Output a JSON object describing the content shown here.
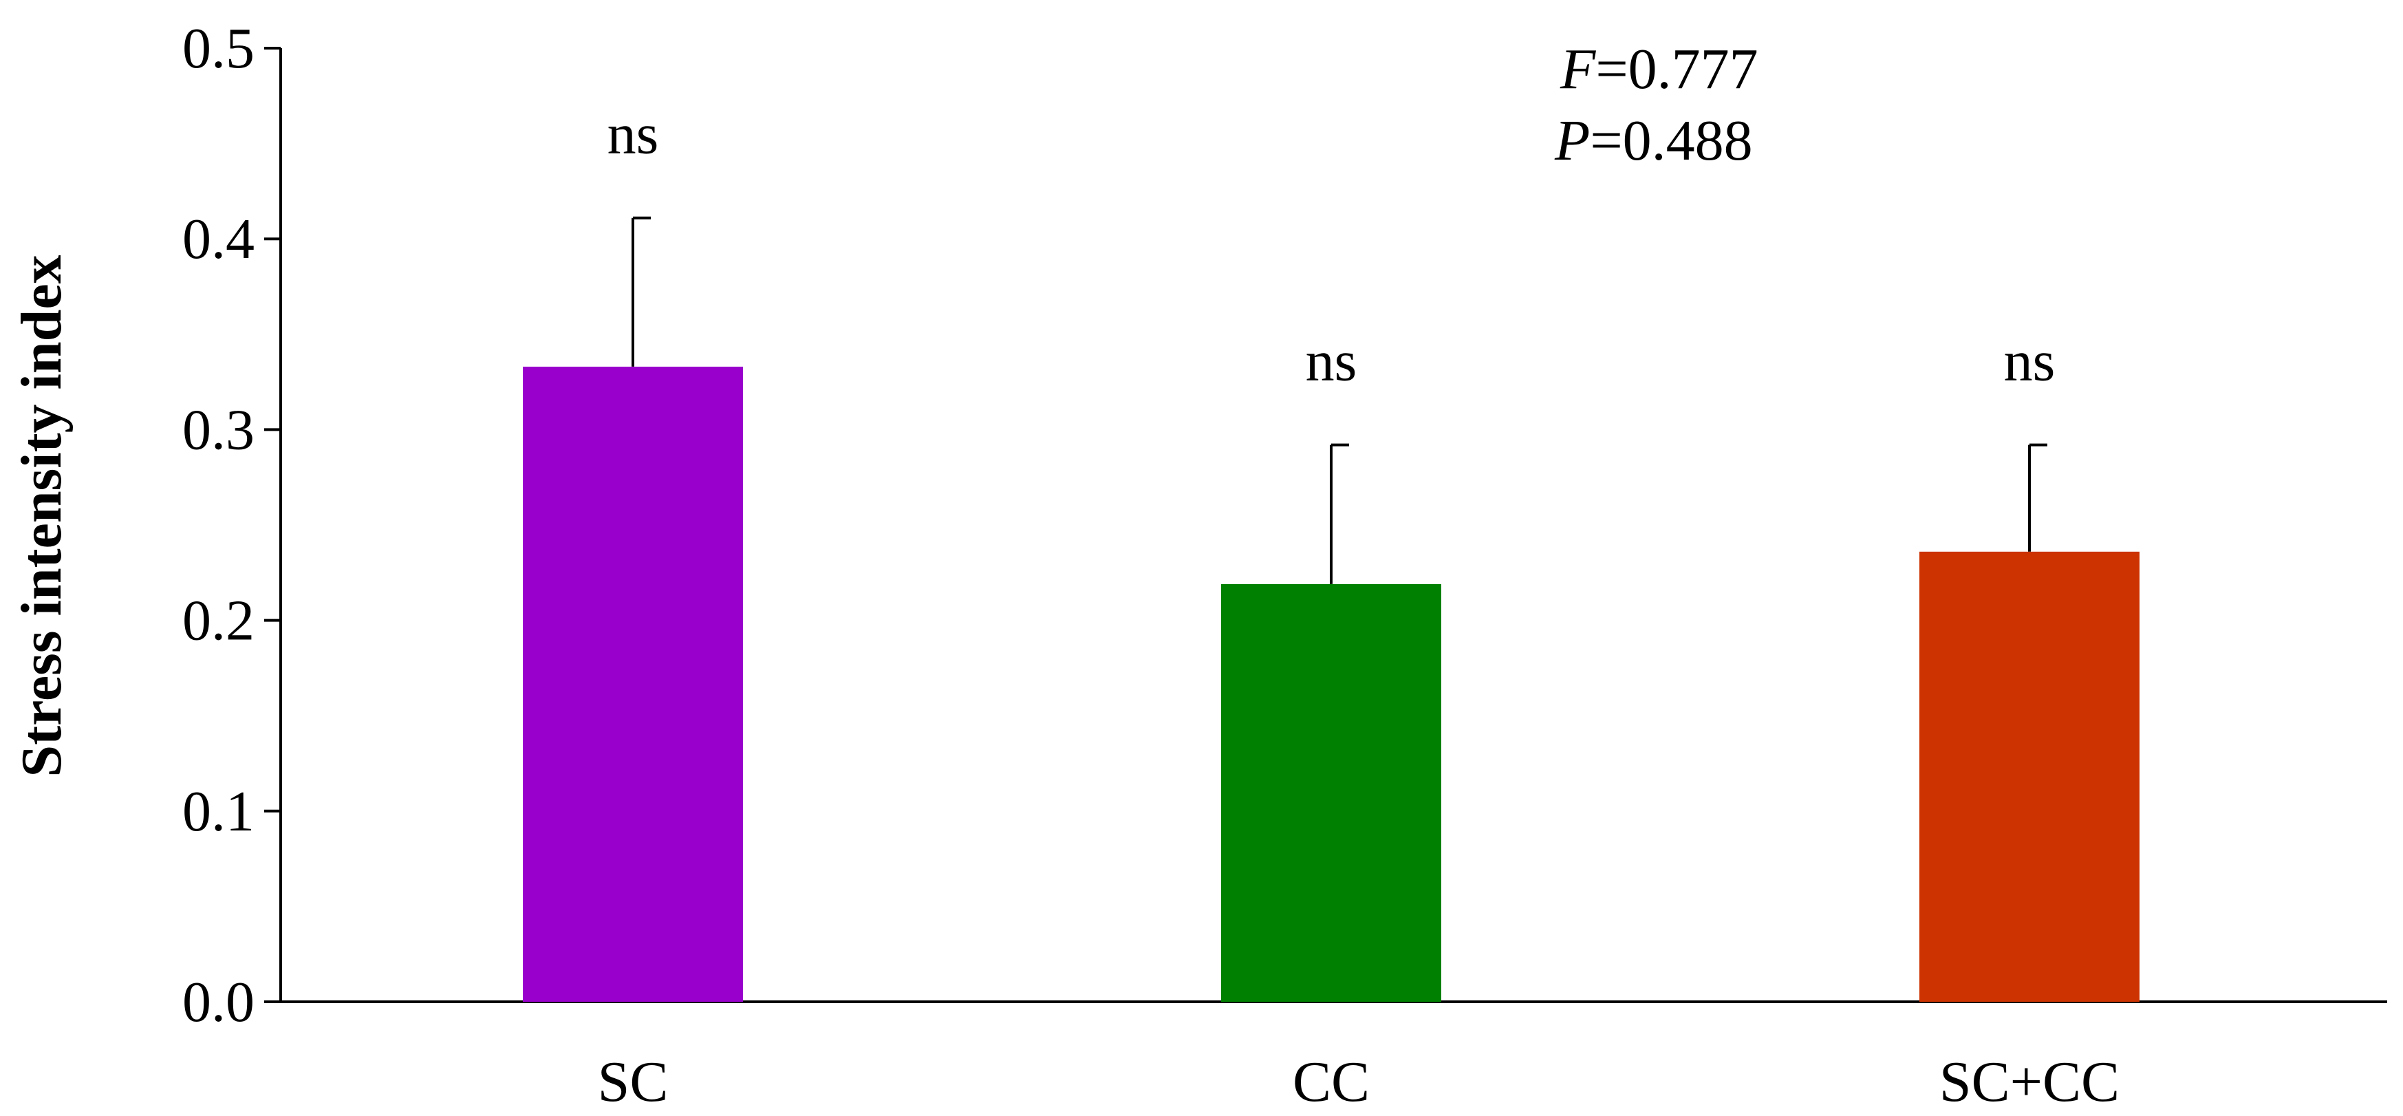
{
  "chart_data": {
    "type": "bar",
    "title": "",
    "xlabel": "",
    "ylabel": "Stress intensity index",
    "ylim": [
      0.0,
      0.5
    ],
    "yticks": [
      0.0,
      0.1,
      0.2,
      0.3,
      0.4,
      0.5
    ],
    "ytick_labels": [
      "0.0",
      "0.1",
      "0.2",
      "0.3",
      "0.4",
      "0.5"
    ],
    "grid": false,
    "legend": "none",
    "categories": [
      "SC",
      "CC",
      "SC+CC"
    ],
    "values": [
      0.333,
      0.219,
      0.236
    ],
    "error_upper": [
      0.411,
      0.292,
      0.292
    ],
    "colors": [
      "#9900CC",
      "#008000",
      "#CC3300"
    ],
    "significance": [
      "ns",
      "ns",
      "ns"
    ],
    "annotations": {
      "f_symbol": "F",
      "f_value": "=0.777",
      "p_symbol": "P",
      "p_value": "=0.488"
    }
  }
}
